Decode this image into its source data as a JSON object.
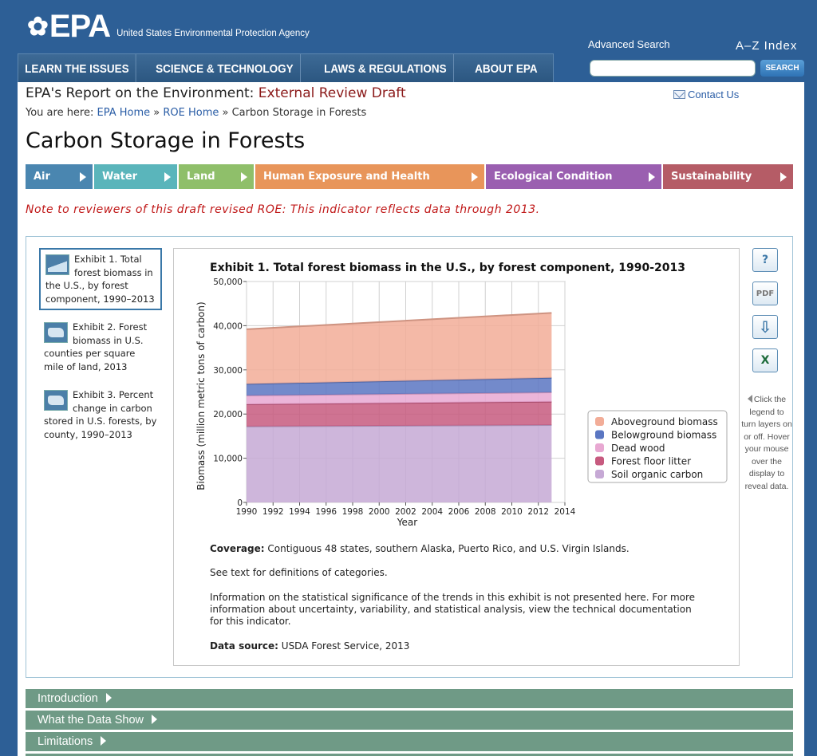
{
  "header": {
    "logo_text": "EPA",
    "agency_name": "United States Environmental Protection Agency",
    "advanced_search": "Advanced Search",
    "az_index": "A–Z Index",
    "search_button": "SEARCH",
    "search_value": ""
  },
  "topnav": [
    "LEARN THE ISSUES",
    "SCIENCE & TECHNOLOGY",
    "LAWS & REGULATIONS",
    "ABOUT EPA"
  ],
  "report": {
    "title_prefix": "EPA's Report on the Environment: ",
    "title_draft": "External Review Draft",
    "contact": "Contact Us",
    "breadcrumb_label": "You are here: ",
    "breadcrumb": [
      "EPA Home",
      "ROE Home",
      "Carbon Storage in Forests"
    ],
    "breadcrumb_sep": " » ",
    "page_title": "Carbon Storage in Forests"
  },
  "themes": [
    {
      "label": "Air",
      "color": "#4a86b0"
    },
    {
      "label": "Water",
      "color": "#5ab5bb"
    },
    {
      "label": "Land",
      "color": "#8fbf6a"
    },
    {
      "label": "Human Exposure and Health",
      "color": "#e8955a"
    },
    {
      "label": "Ecological Condition",
      "color": "#9a5fb0"
    },
    {
      "label": "Sustainability",
      "color": "#b55c66"
    }
  ],
  "reviewer_note": "Note to reviewers of this draft revised ROE: This indicator reflects data through 2013.",
  "exhibits": [
    {
      "number": "Exhibit 1.",
      "text": "Total forest biomass in the U.S., by forest component, 1990–2013",
      "icon": "chart-icon",
      "active": true
    },
    {
      "number": "Exhibit 2.",
      "text": "Forest biomass in U.S. counties per square mile of land, 2013",
      "icon": "map-icon",
      "active": false
    },
    {
      "number": "Exhibit 3.",
      "text": "Percent change in carbon stored in U.S. forests, by county, 1990–2013",
      "icon": "map-icon",
      "active": false
    }
  ],
  "tools": {
    "help": "?",
    "pdf": "PDF",
    "download": "⇩",
    "excel": "X"
  },
  "legend_hint": "Click the legend to turn layers on or off. Hover your mouse over the display to reveal data.",
  "chart_data": {
    "type": "area",
    "stacked": true,
    "title": "Exhibit 1. Total forest biomass in the U.S., by forest component, 1990-2013",
    "xlabel": "Year",
    "ylabel": "Biomass (million metric tons of carbon)",
    "xlim": [
      1990,
      2014
    ],
    "ylim": [
      0,
      50000
    ],
    "xticks": [
      1990,
      1992,
      1994,
      1996,
      1998,
      2000,
      2002,
      2004,
      2006,
      2008,
      2010,
      2012,
      2014
    ],
    "yticks": [
      0,
      10000,
      20000,
      30000,
      40000,
      50000
    ],
    "ytick_labels": [
      "0",
      "10,000",
      "20,000",
      "30,000",
      "40,000",
      "50,000"
    ],
    "x": [
      1990,
      2013
    ],
    "series": [
      {
        "name": "Soil organic carbon",
        "color": "#c6a9d5",
        "values": [
          17200,
          17500
        ]
      },
      {
        "name": "Forest floor litter",
        "color": "#c75a7f",
        "values": [
          5000,
          5300
        ]
      },
      {
        "name": "Dead wood",
        "color": "#e8a8d2",
        "values": [
          2000,
          2100
        ]
      },
      {
        "name": "Belowground biomass",
        "color": "#5a76c2",
        "values": [
          2600,
          3300
        ]
      },
      {
        "name": "Aboveground biomass",
        "color": "#f2ad98",
        "values": [
          12400,
          14700
        ]
      }
    ],
    "legend": [
      "Aboveground biomass",
      "Belowground biomass",
      "Dead wood",
      "Forest floor litter",
      "Soil organic carbon"
    ],
    "legend_position": "right",
    "grid": true
  },
  "notes": {
    "coverage_label": "Coverage:",
    "coverage_text": " Contiguous 48 states, southern Alaska, Puerto Rico, and U.S. Virgin Islands.",
    "definitions": "See text for definitions of categories.",
    "significance": "Information on the statistical significance of the trends in this exhibit is not presented here. For more information about uncertainty, variability, and statistical analysis, view the technical documentation for this indicator.",
    "source_label": "Data source:",
    "source_text": " USDA Forest Service, 2013"
  },
  "sections": [
    "Introduction",
    "What the Data Show",
    "Limitations"
  ]
}
